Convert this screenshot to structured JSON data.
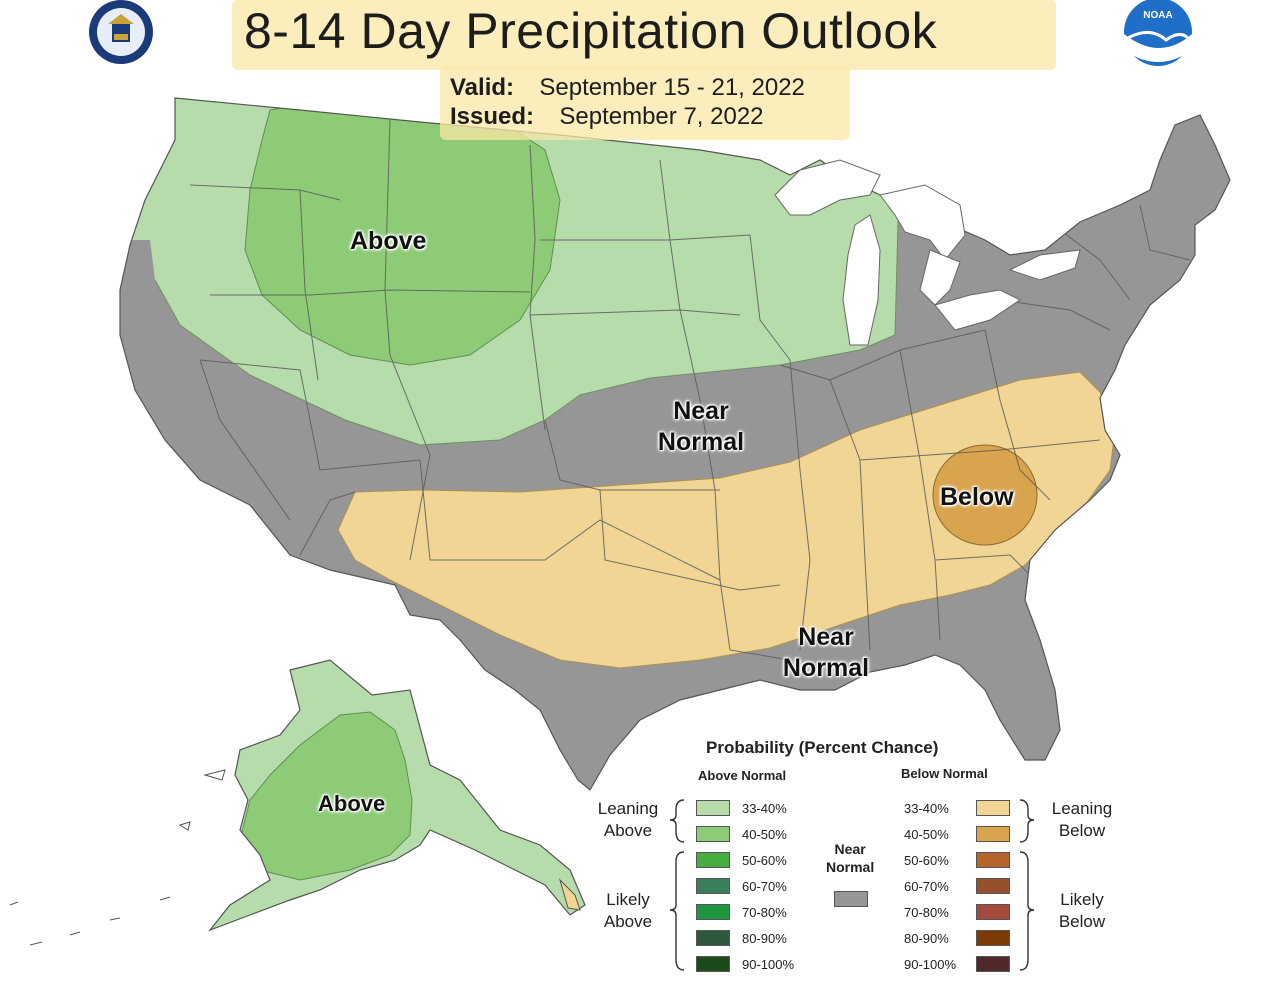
{
  "header": {
    "title": "8-14 Day Precipitation Outlook",
    "valid_label": "Valid:",
    "valid_value": "September 15 - 21, 2022",
    "issued_label": "Issued:",
    "issued_value": "September 7, 2022",
    "noaa_logo_text": "NOAA"
  },
  "map": {
    "colors": {
      "land_gray": "#969696",
      "above_33_40": "#b5dcaa",
      "above_40_50": "#8dcb76",
      "below_33_40": "#f0d595",
      "below_40_50": "#d9a44e",
      "near_normal": "#969696",
      "water": "#ffffff"
    },
    "labels": {
      "above_conus": "Above",
      "near_normal_north_1": "Near",
      "near_normal_north_2": "Normal",
      "below": "Below",
      "near_normal_south_1": "Near",
      "near_normal_south_2": "Normal",
      "above_alaska": "Above"
    }
  },
  "legend": {
    "title": "Probability (Percent Chance)",
    "above_header": "Above Normal",
    "below_header": "Below Normal",
    "near_normal_1": "Near",
    "near_normal_2": "Normal",
    "leaning_above_1": "Leaning",
    "leaning_above_2": "Above",
    "likely_above_1": "Likely",
    "likely_above_2": "Above",
    "leaning_below_1": "Leaning",
    "leaning_below_2": "Below",
    "likely_below_1": "Likely",
    "likely_below_2": "Below",
    "above_bins": [
      {
        "label": "33-40%",
        "color": "#b5dcaa"
      },
      {
        "label": "40-50%",
        "color": "#8dcb76"
      },
      {
        "label": "50-60%",
        "color": "#47ad3f"
      },
      {
        "label": "60-70%",
        "color": "#3b7e5c"
      },
      {
        "label": "70-80%",
        "color": "#1e9642"
      },
      {
        "label": "80-90%",
        "color": "#2d5a3e"
      },
      {
        "label": "90-100%",
        "color": "#1c4a1a"
      }
    ],
    "below_bins": [
      {
        "label": "33-40%",
        "color": "#f0d595"
      },
      {
        "label": "40-50%",
        "color": "#d9a44e"
      },
      {
        "label": "50-60%",
        "color": "#b5662c"
      },
      {
        "label": "60-70%",
        "color": "#96502e"
      },
      {
        "label": "70-80%",
        "color": "#a24a3d"
      },
      {
        "label": "80-90%",
        "color": "#7c3b05"
      },
      {
        "label": "90-100%",
        "color": "#50292a"
      }
    ],
    "near_color": "#969696"
  },
  "icons": {
    "left_logo": "department-of-commerce-seal-icon",
    "right_logo": "noaa-logo-icon"
  }
}
